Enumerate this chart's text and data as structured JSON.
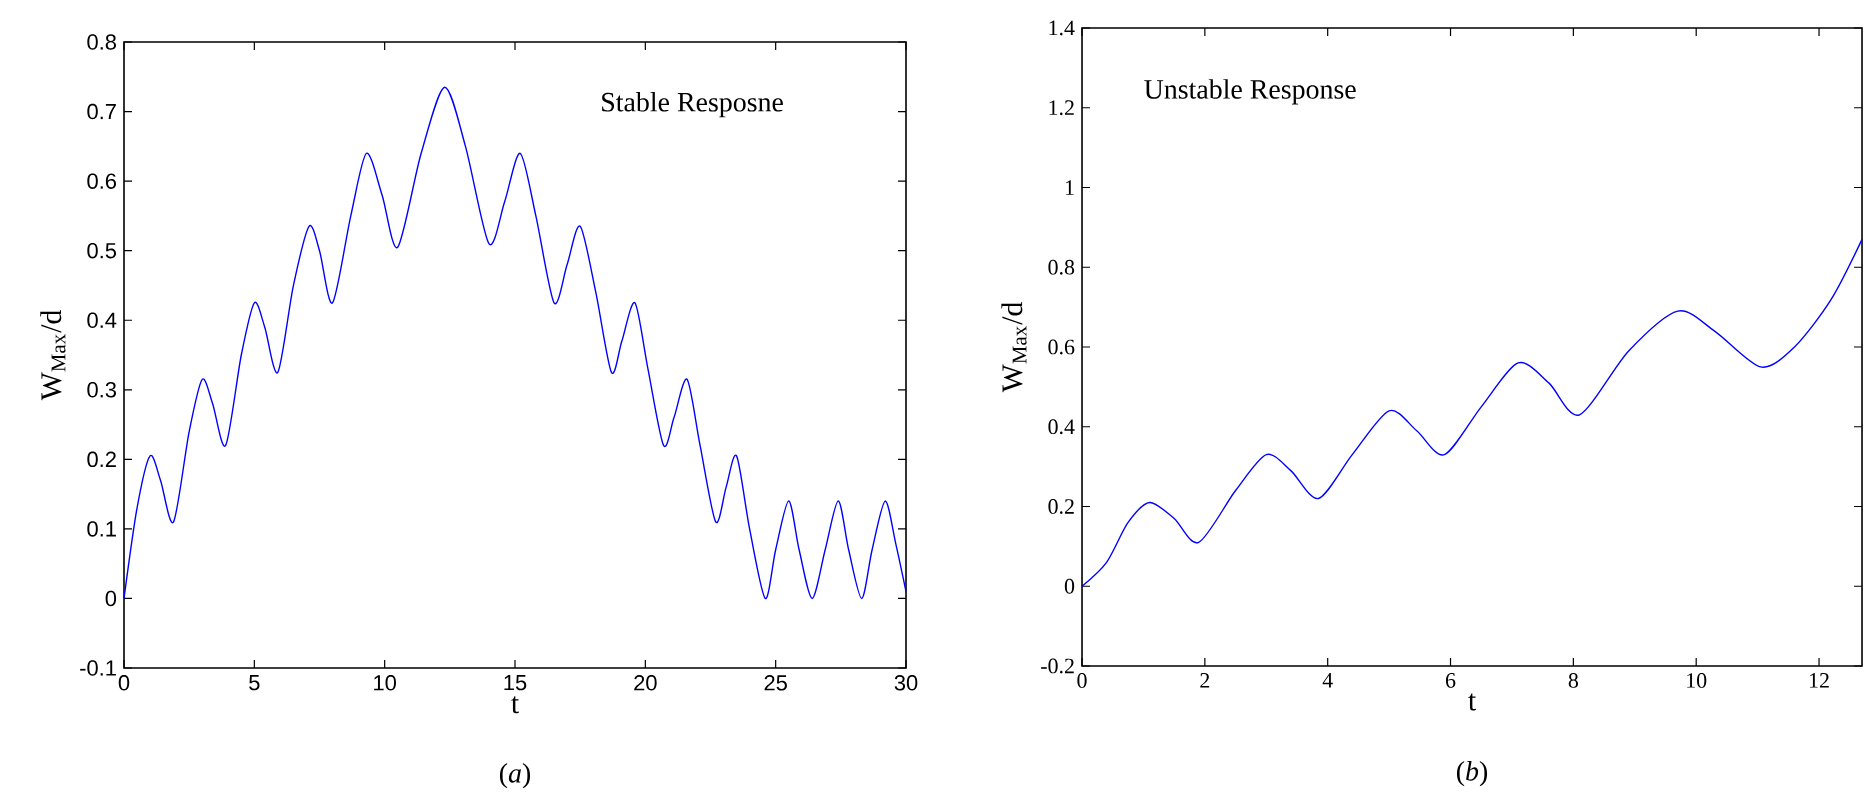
{
  "chart_data": [
    {
      "type": "line",
      "xlabel": "t",
      "ylabel": "W$_{Max}$/d",
      "annotations": [
        "Stable Resposne",
        "(*a*)"
      ],
      "color": "#0000ff",
      "xlim": [
        0,
        30
      ],
      "ylim": [
        -0.1,
        0.8
      ],
      "xticks": [
        0,
        5,
        10,
        15,
        20,
        25,
        30
      ],
      "yticks": [
        -0.1,
        0,
        0.1,
        0.2,
        0.3,
        0.4,
        0.5,
        0.6,
        0.7,
        0.8
      ],
      "x": [
        0,
        0.5,
        1,
        1.4,
        1.9,
        2.5,
        3,
        3.4,
        3.9,
        4.5,
        5,
        5.4,
        5.9,
        6.5,
        7.1,
        7.5,
        8,
        8.7,
        9.3,
        9.9,
        10.5,
        11.4,
        12.3,
        13.1,
        14,
        14.6,
        15.2,
        15.8,
        16.5,
        17,
        17.5,
        18.1,
        18.7,
        19.1,
        19.6,
        20.1,
        20.7,
        21.1,
        21.6,
        22.1,
        22.7,
        23.1,
        23.5,
        24,
        24.6,
        25,
        25.5,
        25.9,
        26.4,
        26.9,
        27.4,
        27.8,
        28.3,
        28.7,
        29.2,
        29.6,
        30
      ],
      "values": [
        0,
        0.13,
        0.205,
        0.17,
        0.11,
        0.24,
        0.315,
        0.28,
        0.22,
        0.35,
        0.425,
        0.39,
        0.325,
        0.45,
        0.535,
        0.5,
        0.425,
        0.55,
        0.64,
        0.58,
        0.505,
        0.64,
        0.735,
        0.65,
        0.51,
        0.57,
        0.64,
        0.55,
        0.425,
        0.48,
        0.535,
        0.44,
        0.325,
        0.37,
        0.425,
        0.33,
        0.22,
        0.26,
        0.315,
        0.22,
        0.11,
        0.16,
        0.205,
        0.1,
        0,
        0.07,
        0.14,
        0.07,
        0,
        0.07,
        0.14,
        0.07,
        0,
        0.07,
        0.14,
        0.08,
        0.01
      ]
    },
    {
      "type": "line",
      "xlabel": "t",
      "ylabel": "W$_{Max}$/d",
      "annotations": [
        "Unstable Response",
        "(*b*)"
      ],
      "color": "#0000ff",
      "xlim": [
        0,
        12.7
      ],
      "ylim": [
        -0.2,
        1.4
      ],
      "xticks": [
        0,
        2,
        4,
        6,
        8,
        10,
        12
      ],
      "yticks": [
        -0.2,
        0,
        0.2,
        0.4,
        0.6,
        0.8,
        1,
        1.2,
        1.4
      ],
      "x": [
        0,
        0.4,
        0.75,
        1.1,
        1.5,
        1.9,
        2.5,
        3,
        3.4,
        3.85,
        4.4,
        5,
        5.45,
        5.9,
        6.5,
        7.1,
        7.6,
        8.1,
        8.9,
        9.7,
        10.3,
        11.05,
        11.6,
        12.2,
        12.7
      ],
      "values": [
        0,
        0.06,
        0.16,
        0.21,
        0.17,
        0.11,
        0.24,
        0.33,
        0.29,
        0.22,
        0.33,
        0.44,
        0.39,
        0.33,
        0.45,
        0.56,
        0.51,
        0.43,
        0.59,
        0.69,
        0.64,
        0.55,
        0.6,
        0.72,
        0.87
      ]
    }
  ]
}
